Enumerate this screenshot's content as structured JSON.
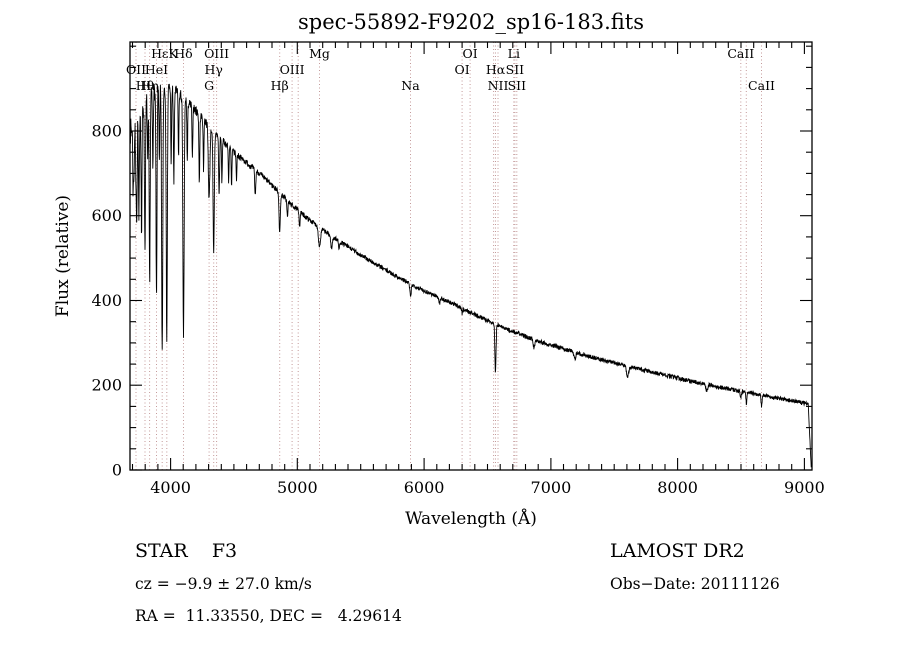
{
  "title": "spec-55892-F9202_sp16-183.fits",
  "footer": {
    "class_label": "STAR    F3",
    "survey": "LAMOST DR2",
    "cz": "cz = −9.9 ± 27.0 km/s",
    "obs_date": "Obs−Date: 20111126",
    "radec": "RA =  11.33550, DEC =   4.29614"
  },
  "chart_data": {
    "type": "line",
    "title": "spec-55892-F9202_sp16-183.fits",
    "xlabel": "Wavelength (Å)",
    "ylabel": "Flux (relative)",
    "xlim": [
      3680,
      9060
    ],
    "ylim": [
      0,
      1010
    ],
    "xticks": [
      4000,
      5000,
      6000,
      7000,
      8000,
      9000
    ],
    "yticks": [
      0,
      200,
      400,
      600,
      800
    ],
    "x_minor_step": 100,
    "y_minor_step": 50,
    "grid": false,
    "legend": "none",
    "line_color": "#000000",
    "marker_line_color": "#c49a9a",
    "continuum": [
      [
        3690,
        800
      ],
      [
        3730,
        830
      ],
      [
        3780,
        860
      ],
      [
        3830,
        880
      ],
      [
        3880,
        895
      ],
      [
        3930,
        903
      ],
      [
        3980,
        903
      ],
      [
        4030,
        896
      ],
      [
        4080,
        884
      ],
      [
        4140,
        866
      ],
      [
        4200,
        848
      ],
      [
        4260,
        828
      ],
      [
        4320,
        806
      ],
      [
        4380,
        786
      ],
      [
        4440,
        768
      ],
      [
        4500,
        750
      ],
      [
        4560,
        735
      ],
      [
        4620,
        720
      ],
      [
        4700,
        700
      ],
      [
        4780,
        678
      ],
      [
        4860,
        655
      ],
      [
        4940,
        630
      ],
      [
        5000,
        614
      ],
      [
        5080,
        594
      ],
      [
        5160,
        576
      ],
      [
        5240,
        558
      ],
      [
        5320,
        542
      ],
      [
        5400,
        527
      ],
      [
        5480,
        511
      ],
      [
        5560,
        496
      ],
      [
        5640,
        482
      ],
      [
        5720,
        468
      ],
      [
        5800,
        454
      ],
      [
        5880,
        441
      ],
      [
        5960,
        429
      ],
      [
        6040,
        418
      ],
      [
        6120,
        407
      ],
      [
        6200,
        396
      ],
      [
        6280,
        385
      ],
      [
        6360,
        372
      ],
      [
        6440,
        362
      ],
      [
        6520,
        350
      ],
      [
        6600,
        339
      ],
      [
        6680,
        329
      ],
      [
        6760,
        320
      ],
      [
        6840,
        311
      ],
      [
        6920,
        303
      ],
      [
        7000,
        295
      ],
      [
        7100,
        286
      ],
      [
        7200,
        277
      ],
      [
        7300,
        268
      ],
      [
        7400,
        261
      ],
      [
        7500,
        253
      ],
      [
        7600,
        246
      ],
      [
        7700,
        238
      ],
      [
        7800,
        231
      ],
      [
        7900,
        224
      ],
      [
        8000,
        217
      ],
      [
        8100,
        210
      ],
      [
        8200,
        204
      ],
      [
        8300,
        197
      ],
      [
        8400,
        192
      ],
      [
        8500,
        186
      ],
      [
        8600,
        181
      ],
      [
        8700,
        175
      ],
      [
        8800,
        169
      ],
      [
        8900,
        164
      ],
      [
        9000,
        158
      ],
      [
        9055,
        153
      ]
    ],
    "absorption_lines": [
      [
        3705,
        150,
        3
      ],
      [
        3712,
        100,
        3
      ],
      [
        3727,
        130,
        4
      ],
      [
        3734,
        220,
        3
      ],
      [
        3750,
        260,
        3.5
      ],
      [
        3771,
        300,
        3.5
      ],
      [
        3798,
        340,
        4
      ],
      [
        3820,
        160,
        3
      ],
      [
        3835,
        430,
        4
      ],
      [
        3860,
        180,
        3
      ],
      [
        3889,
        500,
        4
      ],
      [
        3912,
        180,
        3
      ],
      [
        3934,
        630,
        4.5
      ],
      [
        3970,
        590,
        4.5
      ],
      [
        4005,
        180,
        3
      ],
      [
        4026,
        220,
        3.5
      ],
      [
        4063,
        150,
        3
      ],
      [
        4102,
        560,
        5
      ],
      [
        4132,
        140,
        3
      ],
      [
        4172,
        130,
        3
      ],
      [
        4227,
        160,
        3.5
      ],
      [
        4260,
        120,
        3
      ],
      [
        4304,
        170,
        6
      ],
      [
        4340,
        290,
        5
      ],
      [
        4383,
        140,
        3.5
      ],
      [
        4405,
        100,
        3
      ],
      [
        4458,
        80,
        3
      ],
      [
        4481,
        90,
        3
      ],
      [
        4520,
        60,
        3
      ],
      [
        4668,
        60,
        4
      ],
      [
        4861,
        95,
        5
      ],
      [
        4922,
        40,
        3.5
      ],
      [
        5018,
        35,
        3.5
      ],
      [
        5175,
        45,
        8
      ],
      [
        5270,
        30,
        6
      ],
      [
        5329,
        20,
        4
      ],
      [
        5893,
        32,
        5
      ],
      [
        6122,
        15,
        4
      ],
      [
        6300,
        12,
        4
      ],
      [
        6563,
        112,
        4.5
      ],
      [
        6867,
        20,
        6
      ],
      [
        7190,
        14,
        7
      ],
      [
        7605,
        26,
        9
      ],
      [
        8230,
        14,
        7
      ],
      [
        8498,
        18,
        4
      ],
      [
        8542,
        26,
        4
      ],
      [
        8662,
        26,
        4
      ]
    ],
    "noise": {
      "base": 5,
      "blue_extra": 26,
      "blue_scale": 360,
      "seed": 7
    },
    "edge_drop": [
      9030,
      9055
    ],
    "spectral_lines": [
      3727,
      3798,
      3835,
      3889,
      3934,
      3970,
      4102,
      4304,
      4340,
      4363,
      4861,
      4959,
      5007,
      5175,
      5893,
      6300,
      6363,
      6548,
      6563,
      6583,
      6708,
      6716,
      6731,
      8498,
      8542,
      8662
    ],
    "spectral_markers": [
      {
        "label": "HεK",
        "wavelength": 3952,
        "row": 1
      },
      {
        "label": "Hδ",
        "wavelength": 4102,
        "row": 1
      },
      {
        "label": "OIII",
        "wavelength": 4363,
        "row": 1
      },
      {
        "label": "Mg",
        "wavelength": 5175,
        "row": 1
      },
      {
        "label": "OI",
        "wavelength": 6363,
        "row": 1
      },
      {
        "label": "Li",
        "wavelength": 6708,
        "row": 1
      },
      {
        "label": "CaII",
        "wavelength": 8498,
        "row": 1
      },
      {
        "label": "OII",
        "wavelength": 3727,
        "row": 2
      },
      {
        "label": "HeI",
        "wavelength": 3889,
        "row": 2
      },
      {
        "label": "Hγ",
        "wavelength": 4340,
        "row": 2
      },
      {
        "label": "OIII",
        "wavelength": 4959,
        "row": 2
      },
      {
        "label": "OI",
        "wavelength": 6300,
        "row": 2
      },
      {
        "label": "Hα",
        "wavelength": 6563,
        "row": 2
      },
      {
        "label": "SII",
        "wavelength": 6716,
        "row": 2
      },
      {
        "label": "Hθ",
        "wavelength": 3798,
        "row": 3
      },
      {
        "label": "Hη",
        "wavelength": 3835,
        "row": 3
      },
      {
        "label": "G",
        "wavelength": 4304,
        "row": 3
      },
      {
        "label": "Hβ",
        "wavelength": 4861,
        "row": 3
      },
      {
        "label": "Na",
        "wavelength": 5893,
        "row": 3
      },
      {
        "label": "NII",
        "wavelength": 6583,
        "row": 3
      },
      {
        "label": "SII",
        "wavelength": 6731,
        "row": 3
      },
      {
        "label": "CaII",
        "wavelength": 8662,
        "row": 3
      }
    ]
  }
}
